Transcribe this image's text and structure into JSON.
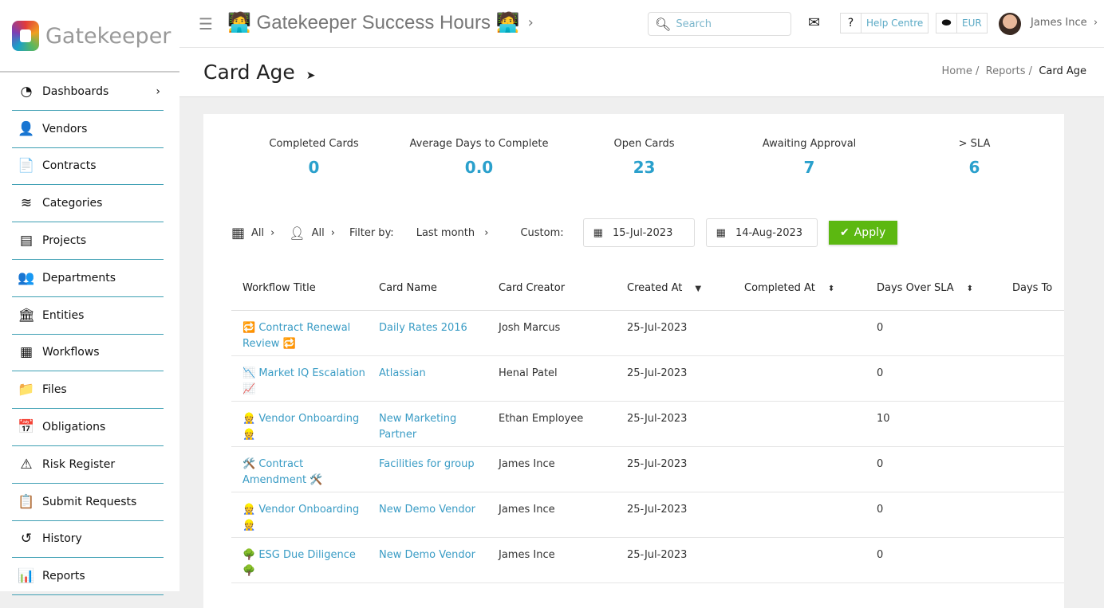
{
  "brand": {
    "name": "Gatekeeper"
  },
  "sidebar": {
    "items": [
      {
        "label": "Dashboards",
        "icon": "gauge-icon",
        "glyph": "◔",
        "chevron": "›"
      },
      {
        "label": "Vendors",
        "icon": "user-cog-icon",
        "glyph": "👤"
      },
      {
        "label": "Contracts",
        "icon": "file-contract-icon",
        "glyph": "📄"
      },
      {
        "label": "Categories",
        "icon": "layers-icon",
        "glyph": "≋"
      },
      {
        "label": "Projects",
        "icon": "project-icon",
        "glyph": "▤"
      },
      {
        "label": "Departments",
        "icon": "users-icon",
        "glyph": "👥"
      },
      {
        "label": "Entities",
        "icon": "building-columns-icon",
        "glyph": "🏛"
      },
      {
        "label": "Workflows",
        "icon": "grid-icon",
        "glyph": "▦"
      },
      {
        "label": "Files",
        "icon": "folder-icon",
        "glyph": "📁"
      },
      {
        "label": "Obligations",
        "icon": "calendar-star-icon",
        "glyph": "📅"
      },
      {
        "label": "Risk Register",
        "icon": "warning-icon",
        "glyph": "⚠"
      },
      {
        "label": "Submit Requests",
        "icon": "clipboard-check-icon",
        "glyph": "📋"
      },
      {
        "label": "History",
        "icon": "history-icon",
        "glyph": "↺"
      },
      {
        "label": "Reports",
        "icon": "bar-chart-icon",
        "glyph": "📊"
      }
    ]
  },
  "header": {
    "title": "🧑‍💻 Gatekeeper Success Hours 🧑‍💻",
    "search_placeholder": "Search",
    "help": "Help Centre",
    "currency": "EUR",
    "user": "James Ince"
  },
  "page": {
    "title": "Card Age",
    "breadcrumbs": [
      "Home",
      "Reports",
      "Card Age"
    ]
  },
  "stats": [
    {
      "label": "Completed Cards",
      "value": "0"
    },
    {
      "label": "Average Days to Complete",
      "value": "0.0"
    },
    {
      "label": "Open Cards",
      "value": "23"
    },
    {
      "label": "Awaiting Approval",
      "value": "7"
    },
    {
      "label": "> SLA",
      "value": "6"
    }
  ],
  "filters": {
    "workflow": "All",
    "user": "All",
    "filter_by_label": "Filter by:",
    "period": "Last month",
    "custom_label": "Custom:",
    "date_from": "15-Jul-2023",
    "date_to": "14-Aug-2023",
    "apply": "Apply"
  },
  "table": {
    "columns": [
      "Workflow Title",
      "Card Name",
      "Card Creator",
      "Created At",
      "Completed At",
      "Days Over SLA",
      "Days To"
    ],
    "rows": [
      {
        "workflow": "🔁 Contract Renewal Review 🔁",
        "card": "Daily Rates 2016",
        "creator": "Josh Marcus",
        "created": "25-Jul-2023",
        "completed": "",
        "over_sla": "0"
      },
      {
        "workflow": "📉 Market IQ Escalation 📈",
        "card": "Atlassian",
        "creator": "Henal Patel",
        "created": "25-Jul-2023",
        "completed": "",
        "over_sla": "0"
      },
      {
        "workflow": "👷 Vendor Onboarding 👷",
        "card": "New Marketing Partner",
        "creator": "Ethan Employee",
        "created": "25-Jul-2023",
        "completed": "",
        "over_sla": "10"
      },
      {
        "workflow": "🛠️ Contract Amendment 🛠️",
        "card": "Facilities for group",
        "creator": "James Ince",
        "created": "25-Jul-2023",
        "completed": "",
        "over_sla": "0"
      },
      {
        "workflow": "👷 Vendor Onboarding 👷",
        "card": "New Demo Vendor",
        "creator": "James Ince",
        "created": "25-Jul-2023",
        "completed": "",
        "over_sla": "0"
      },
      {
        "workflow": "🌳 ESG Due Diligence 🌳",
        "card": "New Demo Vendor",
        "creator": "James Ince",
        "created": "25-Jul-2023",
        "completed": "",
        "over_sla": "0"
      }
    ]
  }
}
